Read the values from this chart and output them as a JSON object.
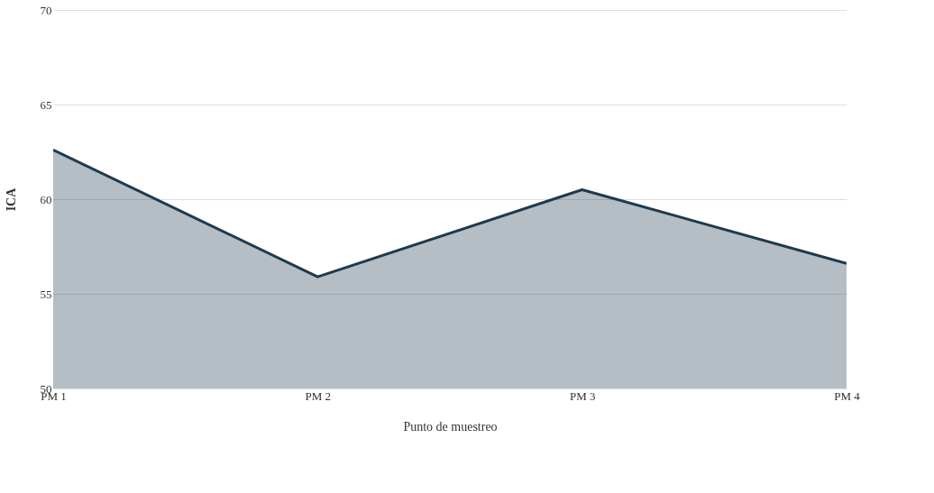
{
  "chart_data": {
    "type": "area",
    "xlabel": "Punto de muestreo",
    "ylabel": "ICA",
    "categories": [
      "PM 1",
      "PM 2",
      "PM 3",
      "PM 4"
    ],
    "series": [
      {
        "color": "#1f3a4d",
        "values": [
          62.6,
          55.9,
          60.5,
          56.6
        ]
      }
    ],
    "ylim": [
      50,
      70
    ],
    "yticks": [
      50,
      55,
      60,
      65,
      70
    ],
    "grid": "y"
  }
}
